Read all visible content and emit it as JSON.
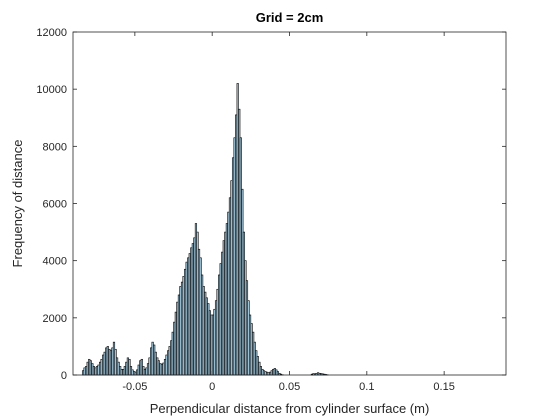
{
  "chart_data": {
    "type": "bar",
    "title": "Grid = 2cm",
    "xlabel": "Perpendicular distance from cylinder surface (m)",
    "ylabel": "Frequency of distance",
    "xlim": [
      -0.09,
      0.19
    ],
    "ylim": [
      0,
      12000
    ],
    "xticks": [
      -0.05,
      0,
      0.05,
      0.1,
      0.15
    ],
    "xtick_labels": [
      "-0.05",
      "0",
      "0.05",
      "0.1",
      "0.15"
    ],
    "yticks": [
      0,
      2000,
      4000,
      6000,
      8000,
      10000,
      12000
    ],
    "ytick_labels": [
      "0",
      "2000",
      "4000",
      "6000",
      "8000",
      "10000",
      "12000"
    ],
    "grid": false,
    "bar_fill": "#a6cee3",
    "bar_edge": "#000000",
    "bin_width": 0.001,
    "bin_start": -0.085,
    "values": [
      0,
      150,
      250,
      300,
      450,
      550,
      500,
      400,
      300,
      250,
      300,
      350,
      450,
      550,
      700,
      800,
      950,
      1000,
      900,
      850,
      950,
      1150,
      900,
      600,
      450,
      300,
      200,
      200,
      300,
      450,
      600,
      550,
      300,
      180,
      120,
      100,
      180,
      350,
      500,
      550,
      300,
      200,
      250,
      400,
      600,
      950,
      1150,
      1050,
      800,
      600,
      500,
      400,
      380,
      420,
      550,
      700,
      850,
      1000,
      1200,
      1500,
      1850,
      2200,
      2550,
      2800,
      3100,
      3250,
      3450,
      3700,
      3950,
      4100,
      4250,
      4450,
      4600,
      4800,
      5300,
      5000,
      4400,
      4100,
      3500,
      3100,
      2900,
      2700,
      2500,
      2250,
      2100,
      2100,
      2300,
      2600,
      3000,
      3500,
      3900,
      4300,
      4700,
      5000,
      5300,
      5700,
      6200,
      6800,
      7600,
      8300,
      9100,
      10200,
      9300,
      8300,
      6500,
      5000,
      4000,
      3300,
      2600,
      2100,
      1800,
      1500,
      1150,
      850,
      650,
      450,
      300,
      200,
      150,
      120,
      100,
      80,
      100,
      150,
      200,
      230,
      180,
      120,
      60,
      30,
      10,
      0,
      0,
      0,
      0,
      0,
      0,
      0,
      0,
      0,
      0,
      0,
      0,
      0,
      0,
      0,
      0,
      0,
      0,
      30,
      50,
      40,
      60,
      80,
      60,
      50,
      40,
      30,
      20,
      10,
      0,
      0,
      0,
      0,
      0,
      0,
      0,
      0,
      0,
      0,
      0
    ]
  }
}
